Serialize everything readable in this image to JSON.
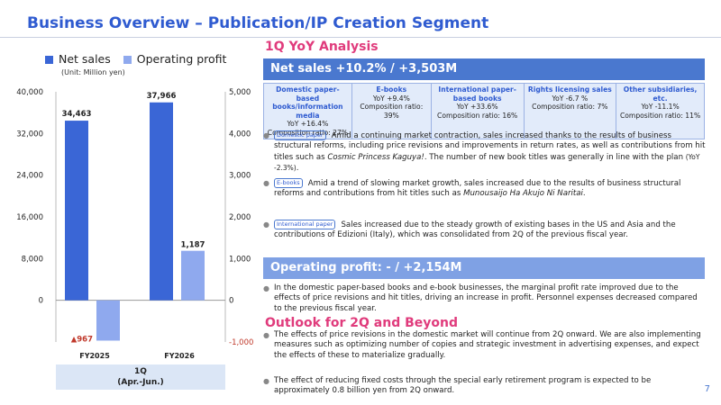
{
  "header": {
    "title": "Business Overview – Publication/IP Creation Segment"
  },
  "legend": {
    "items": [
      {
        "label": "Net sales",
        "color": "#3a66d6"
      },
      {
        "label": "Operating profit",
        "color": "#8fa9ee"
      }
    ],
    "unit": "(Unit: Million yen)"
  },
  "chart_data": {
    "type": "bar",
    "categories": [
      "FY2025",
      "FY2026"
    ],
    "series": [
      {
        "name": "Net sales",
        "values": [
          34463,
          37966
        ],
        "axis": "left",
        "color": "#3a66d6"
      },
      {
        "name": "Operating profit",
        "values": [
          -967,
          1187
        ],
        "axis": "right",
        "color": "#8fa9ee"
      }
    ],
    "data_labels": {
      "net_sales": [
        "34,463",
        "37,966"
      ],
      "operating_profit": [
        "▲967",
        "1,187"
      ]
    },
    "ylim_left": [
      0,
      40000
    ],
    "ylim_right": [
      -1000,
      5000
    ],
    "left_ticks": [
      "40,000",
      "32,000",
      "24,000",
      "16,000",
      "8,000",
      "0"
    ],
    "right_ticks": [
      "5,000",
      "4,000",
      "3,000",
      "2,000",
      "1,000",
      "0",
      "-1,000"
    ],
    "period_label_1": "1Q",
    "period_label_2": "(Apr.-Jun.)"
  },
  "yoy": {
    "heading": "1Q YoY Analysis",
    "net_sales_bar": "Net sales +10.2% / +3,503M",
    "segments": [
      {
        "name": "Domestic paper-based books/information media",
        "yoy": "YoY +16.4%",
        "comp": "Composition ratio: 27%"
      },
      {
        "name": "E-books",
        "yoy": "YoY +9.4%",
        "comp": "Composition ratio: 39%"
      },
      {
        "name": "International paper-based books",
        "yoy": "YoY +33.6%",
        "comp": "Composition ratio: 16%"
      },
      {
        "name": "Rights licensing sales",
        "yoy": "YoY -6.7 %",
        "comp": "Composition ratio: 7%"
      },
      {
        "name": "Other subsidiaries, etc.",
        "yoy": "YoY -11.1%",
        "comp": "Composition ratio: 11%"
      }
    ],
    "bullets": [
      {
        "tag": "Domestic paper",
        "text": "Amid a continuing market contraction, sales increased thanks to the results of business structural reforms, including price revisions and improvements in return rates, as well as contributions from hit titles such as ",
        "italic": "Cosmic Princess Kaguya!",
        "tail": ". The number of new book titles was generally in line with the plan ",
        "small": "(YoY -2.3%)",
        "end": "."
      },
      {
        "tag": "E-books",
        "text": "Amid a trend of slowing market growth, sales increased due to the results of business structural reforms and contributions from hit titles such as ",
        "italic": "Munousaijo Ha Akujo Ni Naritai",
        "tail": ".",
        "small": "",
        "end": ""
      },
      {
        "tag": "International paper",
        "text": "Sales increased due to the steady growth of existing bases in the US and Asia and the contributions of Edizioni (Italy), which was consolidated from 2Q of the previous fiscal year.",
        "italic": "",
        "tail": "",
        "small": "",
        "end": ""
      }
    ],
    "op_bar": "Operating profit: - / +2,154M",
    "op_bullet": "In the domestic paper-based books and e-book businesses, the marginal profit rate improved due to the effects of price revisions and hit titles, driving an increase in profit. Personnel expenses decreased compared to the previous fiscal year."
  },
  "outlook": {
    "heading": "Outlook for 2Q and Beyond",
    "bullets": [
      "The effects of price revisions in the domestic market will continue from 2Q onward. We are also implementing measures such as optimizing number of copies and strategic investment in advertising expenses, and expect the effects of these to materialize gradually.",
      "The effect of reducing fixed costs through the special early retirement program is expected to be approximately 0.8 billion yen from 2Q onward."
    ]
  },
  "page": {
    "number": "7"
  }
}
